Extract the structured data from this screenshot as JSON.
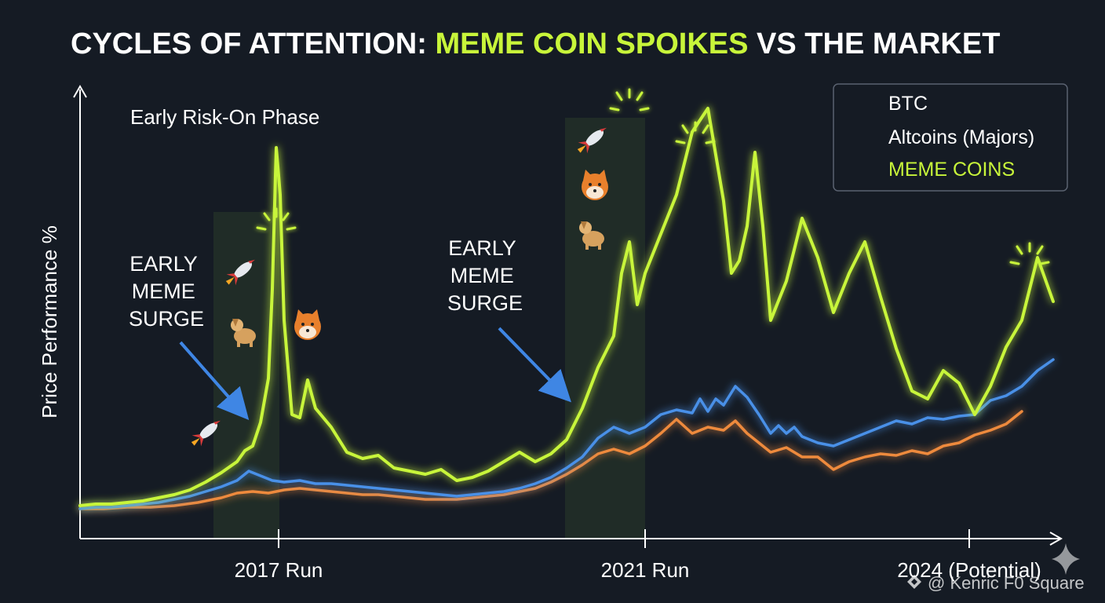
{
  "chart_data": {
    "type": "line",
    "title_main": "CYCLES OF ATTENTION: ",
    "title_highlight": "MEME COIN SPOIKES",
    "title_tail": " VS THE MARKET",
    "xlabel": "",
    "ylabel": "Price Performance %",
    "x_ticks": [
      "2017 Run",
      "2021 Run",
      "2024 (Potential)"
    ],
    "grid": false,
    "legend_position": "top-right",
    "series": [
      {
        "name": "BTC",
        "color": "#4a90e8",
        "points": [
          [
            0,
            0
          ],
          [
            20,
            1
          ],
          [
            40,
            1
          ],
          [
            60,
            2
          ],
          [
            80,
            3
          ],
          [
            100,
            4
          ],
          [
            120,
            6
          ],
          [
            140,
            8
          ],
          [
            160,
            11
          ],
          [
            180,
            14
          ],
          [
            200,
            18
          ],
          [
            215,
            24
          ],
          [
            230,
            21
          ],
          [
            245,
            18
          ],
          [
            260,
            17
          ],
          [
            280,
            18
          ],
          [
            300,
            16
          ],
          [
            320,
            16
          ],
          [
            340,
            15
          ],
          [
            360,
            14
          ],
          [
            380,
            13
          ],
          [
            400,
            12
          ],
          [
            420,
            11
          ],
          [
            440,
            10
          ],
          [
            460,
            9
          ],
          [
            480,
            8
          ],
          [
            500,
            9
          ],
          [
            520,
            10
          ],
          [
            540,
            11
          ],
          [
            560,
            13
          ],
          [
            580,
            16
          ],
          [
            600,
            20
          ],
          [
            620,
            26
          ],
          [
            640,
            33
          ],
          [
            660,
            45
          ],
          [
            680,
            52
          ],
          [
            700,
            48
          ],
          [
            720,
            52
          ],
          [
            740,
            60
          ],
          [
            760,
            63
          ],
          [
            780,
            61
          ],
          [
            790,
            70
          ],
          [
            800,
            62
          ],
          [
            810,
            70
          ],
          [
            820,
            66
          ],
          [
            835,
            78
          ],
          [
            850,
            71
          ],
          [
            865,
            60
          ],
          [
            880,
            48
          ],
          [
            890,
            53
          ],
          [
            900,
            48
          ],
          [
            910,
            52
          ],
          [
            920,
            46
          ],
          [
            940,
            42
          ],
          [
            960,
            40
          ],
          [
            980,
            44
          ],
          [
            1000,
            48
          ],
          [
            1020,
            52
          ],
          [
            1040,
            56
          ],
          [
            1060,
            54
          ],
          [
            1080,
            58
          ],
          [
            1100,
            57
          ],
          [
            1120,
            59
          ],
          [
            1140,
            60
          ],
          [
            1160,
            69
          ],
          [
            1180,
            72
          ],
          [
            1200,
            78
          ],
          [
            1220,
            88
          ],
          [
            1240,
            95
          ]
        ]
      },
      {
        "name": "Altcoins (Majors)",
        "color": "#ee8a3c",
        "points": [
          [
            0,
            0
          ],
          [
            30,
            0
          ],
          [
            60,
            1
          ],
          [
            90,
            1
          ],
          [
            120,
            2
          ],
          [
            150,
            4
          ],
          [
            180,
            7
          ],
          [
            200,
            10
          ],
          [
            220,
            11
          ],
          [
            240,
            10
          ],
          [
            260,
            12
          ],
          [
            280,
            13
          ],
          [
            300,
            12
          ],
          [
            320,
            11
          ],
          [
            340,
            10
          ],
          [
            360,
            9
          ],
          [
            380,
            9
          ],
          [
            400,
            8
          ],
          [
            420,
            7
          ],
          [
            440,
            6
          ],
          [
            460,
            6
          ],
          [
            480,
            6
          ],
          [
            500,
            7
          ],
          [
            520,
            8
          ],
          [
            540,
            9
          ],
          [
            560,
            11
          ],
          [
            580,
            13
          ],
          [
            600,
            17
          ],
          [
            620,
            22
          ],
          [
            640,
            28
          ],
          [
            660,
            35
          ],
          [
            680,
            38
          ],
          [
            700,
            35
          ],
          [
            720,
            40
          ],
          [
            740,
            48
          ],
          [
            760,
            57
          ],
          [
            780,
            48
          ],
          [
            800,
            52
          ],
          [
            820,
            50
          ],
          [
            835,
            56
          ],
          [
            850,
            48
          ],
          [
            865,
            42
          ],
          [
            880,
            36
          ],
          [
            900,
            39
          ],
          [
            920,
            33
          ],
          [
            940,
            33
          ],
          [
            960,
            25
          ],
          [
            980,
            30
          ],
          [
            1000,
            33
          ],
          [
            1020,
            35
          ],
          [
            1040,
            34
          ],
          [
            1060,
            37
          ],
          [
            1080,
            35
          ],
          [
            1100,
            40
          ],
          [
            1120,
            42
          ],
          [
            1140,
            47
          ],
          [
            1160,
            50
          ],
          [
            1180,
            54
          ],
          [
            1200,
            62
          ]
        ]
      },
      {
        "name": "MEME COINS",
        "color": "#c8f53a",
        "points": [
          [
            0,
            2
          ],
          [
            20,
            3
          ],
          [
            40,
            3
          ],
          [
            60,
            4
          ],
          [
            80,
            5
          ],
          [
            100,
            7
          ],
          [
            120,
            9
          ],
          [
            140,
            12
          ],
          [
            160,
            17
          ],
          [
            180,
            23
          ],
          [
            200,
            30
          ],
          [
            210,
            37
          ],
          [
            220,
            40
          ],
          [
            230,
            55
          ],
          [
            240,
            83
          ],
          [
            245,
            140
          ],
          [
            250,
            230
          ],
          [
            255,
            200
          ],
          [
            260,
            120
          ],
          [
            270,
            60
          ],
          [
            280,
            58
          ],
          [
            290,
            82
          ],
          [
            300,
            64
          ],
          [
            320,
            52
          ],
          [
            340,
            36
          ],
          [
            360,
            32
          ],
          [
            380,
            34
          ],
          [
            400,
            26
          ],
          [
            420,
            24
          ],
          [
            440,
            22
          ],
          [
            460,
            25
          ],
          [
            480,
            18
          ],
          [
            500,
            20
          ],
          [
            520,
            24
          ],
          [
            540,
            30
          ],
          [
            560,
            36
          ],
          [
            580,
            30
          ],
          [
            600,
            35
          ],
          [
            620,
            44
          ],
          [
            640,
            64
          ],
          [
            660,
            90
          ],
          [
            680,
            110
          ],
          [
            690,
            150
          ],
          [
            700,
            170
          ],
          [
            710,
            130
          ],
          [
            720,
            150
          ],
          [
            740,
            175
          ],
          [
            760,
            200
          ],
          [
            780,
            240
          ],
          [
            800,
            255
          ],
          [
            820,
            196
          ],
          [
            830,
            150
          ],
          [
            840,
            158
          ],
          [
            850,
            180
          ],
          [
            860,
            227
          ],
          [
            870,
            180
          ],
          [
            880,
            120
          ],
          [
            900,
            145
          ],
          [
            920,
            185
          ],
          [
            940,
            160
          ],
          [
            960,
            125
          ],
          [
            980,
            150
          ],
          [
            1000,
            170
          ],
          [
            1020,
            135
          ],
          [
            1040,
            102
          ],
          [
            1060,
            75
          ],
          [
            1080,
            70
          ],
          [
            1100,
            88
          ],
          [
            1120,
            80
          ],
          [
            1140,
            60
          ],
          [
            1160,
            78
          ],
          [
            1180,
            103
          ],
          [
            1200,
            120
          ],
          [
            1220,
            160
          ],
          [
            1240,
            132
          ]
        ]
      }
    ],
    "annotations": [
      {
        "text": "Early Risk-On Phase"
      },
      {
        "lines": [
          "EARLY",
          "MEME",
          "SURGE"
        ],
        "cycle": "2017"
      },
      {
        "lines": [
          "EARLY",
          "MEME",
          "SURGE"
        ],
        "cycle": "2021"
      }
    ],
    "watermark": "@ Kenric F0 Square",
    "icons": [
      "rocket-icon",
      "dog-icon",
      "shiba-icon",
      "sparkle-icon"
    ]
  }
}
